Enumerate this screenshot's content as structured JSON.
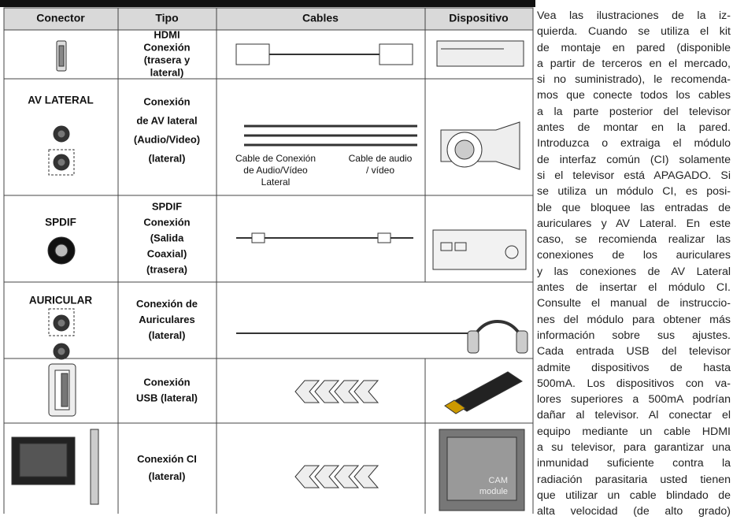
{
  "table": {
    "headers": [
      "Conector",
      "Tipo",
      "Cables",
      "Dispositivo"
    ],
    "rows": [
      {
        "tipo": [
          "HDMI",
          "Conexión",
          "(trasera y",
          "lateral)"
        ]
      },
      {
        "connector": "AV LATERAL",
        "tipo": [
          "Conexión",
          "de AV lateral",
          "(Audio/Video)",
          "(lateral)"
        ],
        "cable_labels": [
          [
            "Cable de Conexión",
            "de Audio/Vídeo",
            "Lateral"
          ],
          [
            "Cable de audio",
            "/ vídeo"
          ]
        ]
      },
      {
        "connector": "SPDIF",
        "tipo": [
          "SPDIF",
          "Conexión",
          "(Salida",
          "Coaxial)",
          "(trasera)"
        ]
      },
      {
        "connector": "AURICULAR",
        "tipo": [
          "Conexión de",
          "Auriculares",
          "(lateral)"
        ]
      },
      {
        "tipo": [
          "Conexión",
          "USB (lateral)"
        ]
      },
      {
        "tipo": [
          "Conexión CI",
          "(lateral)"
        ],
        "device_labels": [
          "CAM",
          "module"
        ]
      }
    ]
  },
  "paragraph": [
    "Vea las ilustraciones de la iz-",
    "quierda. Cuando se utiliza el kit",
    "de montaje en pared (disponible",
    "a partir de terceros en el mercado,",
    "si no suministrado), le recomenda-",
    "mos que conecte todos los cables",
    "a la parte posterior del televisor",
    "antes de montar en la pared.",
    "Introduzca o extraiga el módulo",
    "de interfaz común (CI) solamente",
    "si el televisor está APAGADO. Si",
    "se utiliza un módulo CI, es posi-",
    "ble que bloquee las entradas de",
    "auriculares y AV Lateral. En este",
    "caso, se recomienda realizar las",
    "conexiones de los auriculares",
    "y las conexiones de AV Lateral",
    "antes de insertar el módulo CI.",
    "Consulte el manual de instruccio-",
    "nes del módulo para obtener más",
    "información sobre sus ajustes.",
    "Cada entrada USB del televisor",
    "admite dispositivos de hasta",
    "500mA. Los dispositivos con va-",
    "lores superiores a 500mA podrían",
    "dañar al televisor. Al conectar el",
    "equipo mediante un cable HDMI",
    "a su televisor, para garantizar una",
    "inmunidad suficiente contra la",
    "radiación parasitaria usted tienen",
    "que utilizar un cable blindado de",
    "alta velocidad (de alto grado)"
  ]
}
